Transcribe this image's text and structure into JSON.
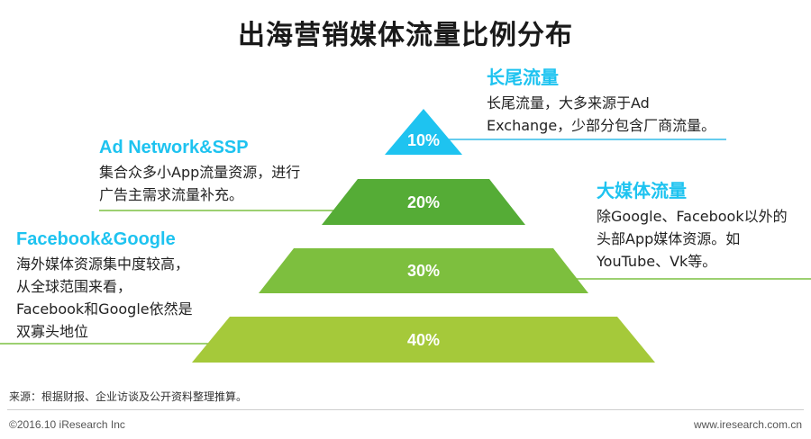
{
  "title": "出海营销媒体流量比例分布",
  "colors": {
    "accent_blue": "#33bce8",
    "level1": "#1ec3f0",
    "level2": "#55ac36",
    "level3": "#7dbf3e",
    "level4": "#a5c93a",
    "line_green": "#7cc142",
    "line_blue": "#33bce8"
  },
  "levels": [
    {
      "label": "10%",
      "value": 10
    },
    {
      "label": "20%",
      "value": 20
    },
    {
      "label": "30%",
      "value": 30
    },
    {
      "label": "40%",
      "value": 40
    }
  ],
  "notes": {
    "long_tail": {
      "title": "长尾流量",
      "lines": [
        "长尾流量，大多来源于Ad",
        "Exchange，少部分包含厂商流量。"
      ]
    },
    "ad_network": {
      "title": "Ad Network&SSP",
      "lines": [
        "集合众多小App流量资源，进行",
        "广告主需求流量补充。"
      ]
    },
    "big_media": {
      "title": "大媒体流量",
      "lines": [
        "除Google、Facebook以外的",
        "头部App媒体资源。如",
        "YouTube、Vk等。"
      ]
    },
    "fb_google": {
      "title": "Facebook&Google",
      "lines": [
        "海外媒体资源集中度较高，",
        "从全球范围来看，",
        "Facebook和Google依然是",
        "双寡头地位"
      ]
    }
  },
  "source": "来源：根据财报、企业访谈及公开资料整理推算。",
  "footer": {
    "copyright": "©2016.10 iResearch Inc",
    "website": "www.iresearch.com.cn"
  }
}
